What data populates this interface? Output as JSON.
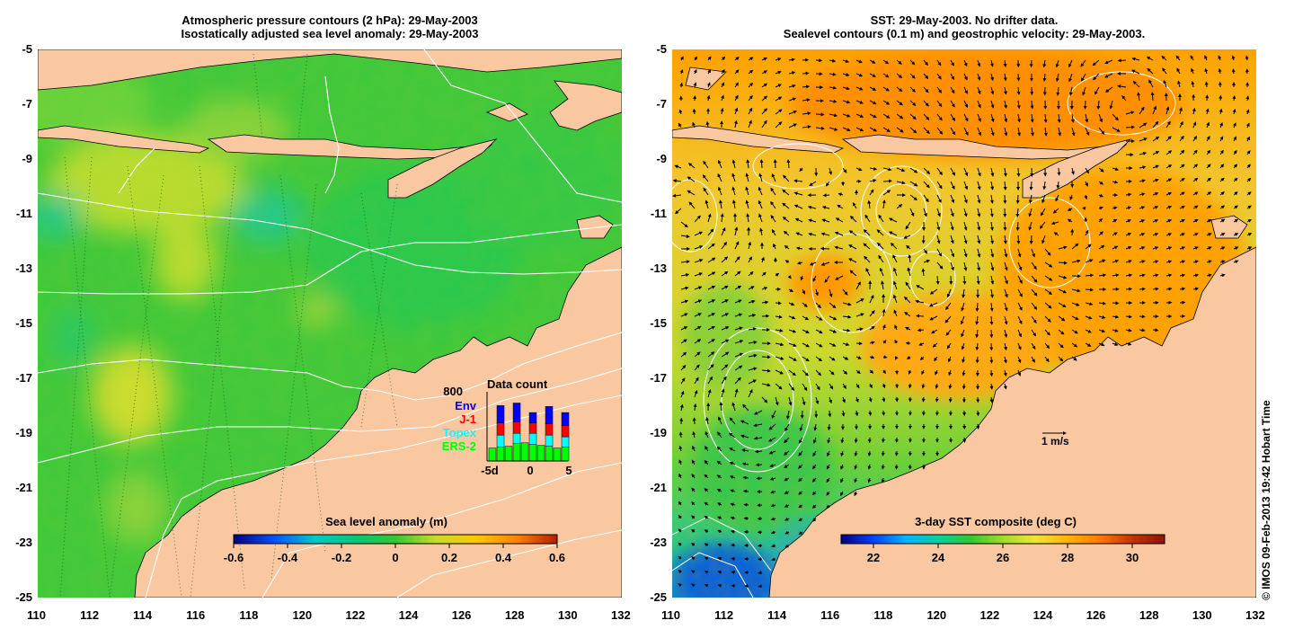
{
  "left_panel": {
    "title_line1": "Atmospheric pressure contours (2 hPa): 29-May-2003",
    "title_line2": "Isostatically adjusted sea level anomaly: 29-May-2003",
    "colorbar": {
      "label": "Sea level anomaly (m)",
      "ticks": [
        "-0.6",
        "-0.4",
        "-0.2",
        "0",
        "0.2",
        "0.4",
        "0.6"
      ],
      "min": -0.6,
      "max": 0.6,
      "colors": [
        "#00007f",
        "#0050ff",
        "#00c8c8",
        "#00c878",
        "#32c832",
        "#c8dc28",
        "#ffc800",
        "#ff8200",
        "#b41e00"
      ]
    },
    "data_count": {
      "title": "Data count",
      "max_label": "800",
      "x_ticks": [
        "-5d",
        "0",
        "5"
      ],
      "legend": [
        {
          "name": "Env",
          "color": "#0000ff"
        },
        {
          "name": "J-1",
          "color": "#ff0000"
        },
        {
          "name": "Topex",
          "color": "#00ffff"
        },
        {
          "name": "ERS-2",
          "color": "#00ff00"
        }
      ],
      "days": [
        "-5",
        "-4",
        "-3",
        "-2",
        "-1",
        "0",
        "1",
        "2",
        "3",
        "4"
      ],
      "bars": {
        "ERS-2": [
          150,
          160,
          170,
          200,
          210,
          190,
          180,
          170,
          150,
          160
        ],
        "Topex": [
          0,
          140,
          0,
          120,
          0,
          130,
          0,
          130,
          0,
          120
        ],
        "J-1": [
          0,
          140,
          0,
          130,
          0,
          120,
          0,
          130,
          0,
          130
        ],
        "Env": [
          0,
          200,
          0,
          220,
          0,
          120,
          0,
          200,
          0,
          150
        ]
      }
    }
  },
  "right_panel": {
    "title_line1": "SST: 29-May-2003. No drifter data.",
    "title_line2": "Sealevel contours (0.1 m) and geostrophic velocity: 29-May-2003.",
    "scale_label": "1 m/s",
    "colorbar": {
      "label": "3-day SST composite (deg C)",
      "ticks": [
        "22",
        "24",
        "26",
        "28",
        "30"
      ],
      "min": 21,
      "max": 31,
      "colors": [
        "#000080",
        "#0040ff",
        "#00b4ff",
        "#00d2a0",
        "#32c832",
        "#a0dc28",
        "#f0e632",
        "#ffb400",
        "#ff7800",
        "#c83200",
        "#8c1400"
      ]
    }
  },
  "axes": {
    "lat_ticks": [
      "-5",
      "-7",
      "-9",
      "-11",
      "-13",
      "-15",
      "-17",
      "-19",
      "-21",
      "-23",
      "-25"
    ],
    "lon_ticks": [
      "110",
      "112",
      "114",
      "116",
      "118",
      "120",
      "122",
      "124",
      "126",
      "128",
      "130",
      "132"
    ],
    "lon_range": [
      110,
      132
    ],
    "lat_range": [
      -25,
      -5
    ]
  },
  "copyright": "© IMOS 09-Feb-2013 19:42 Hobart Time",
  "land_color": "#fac8a0"
}
